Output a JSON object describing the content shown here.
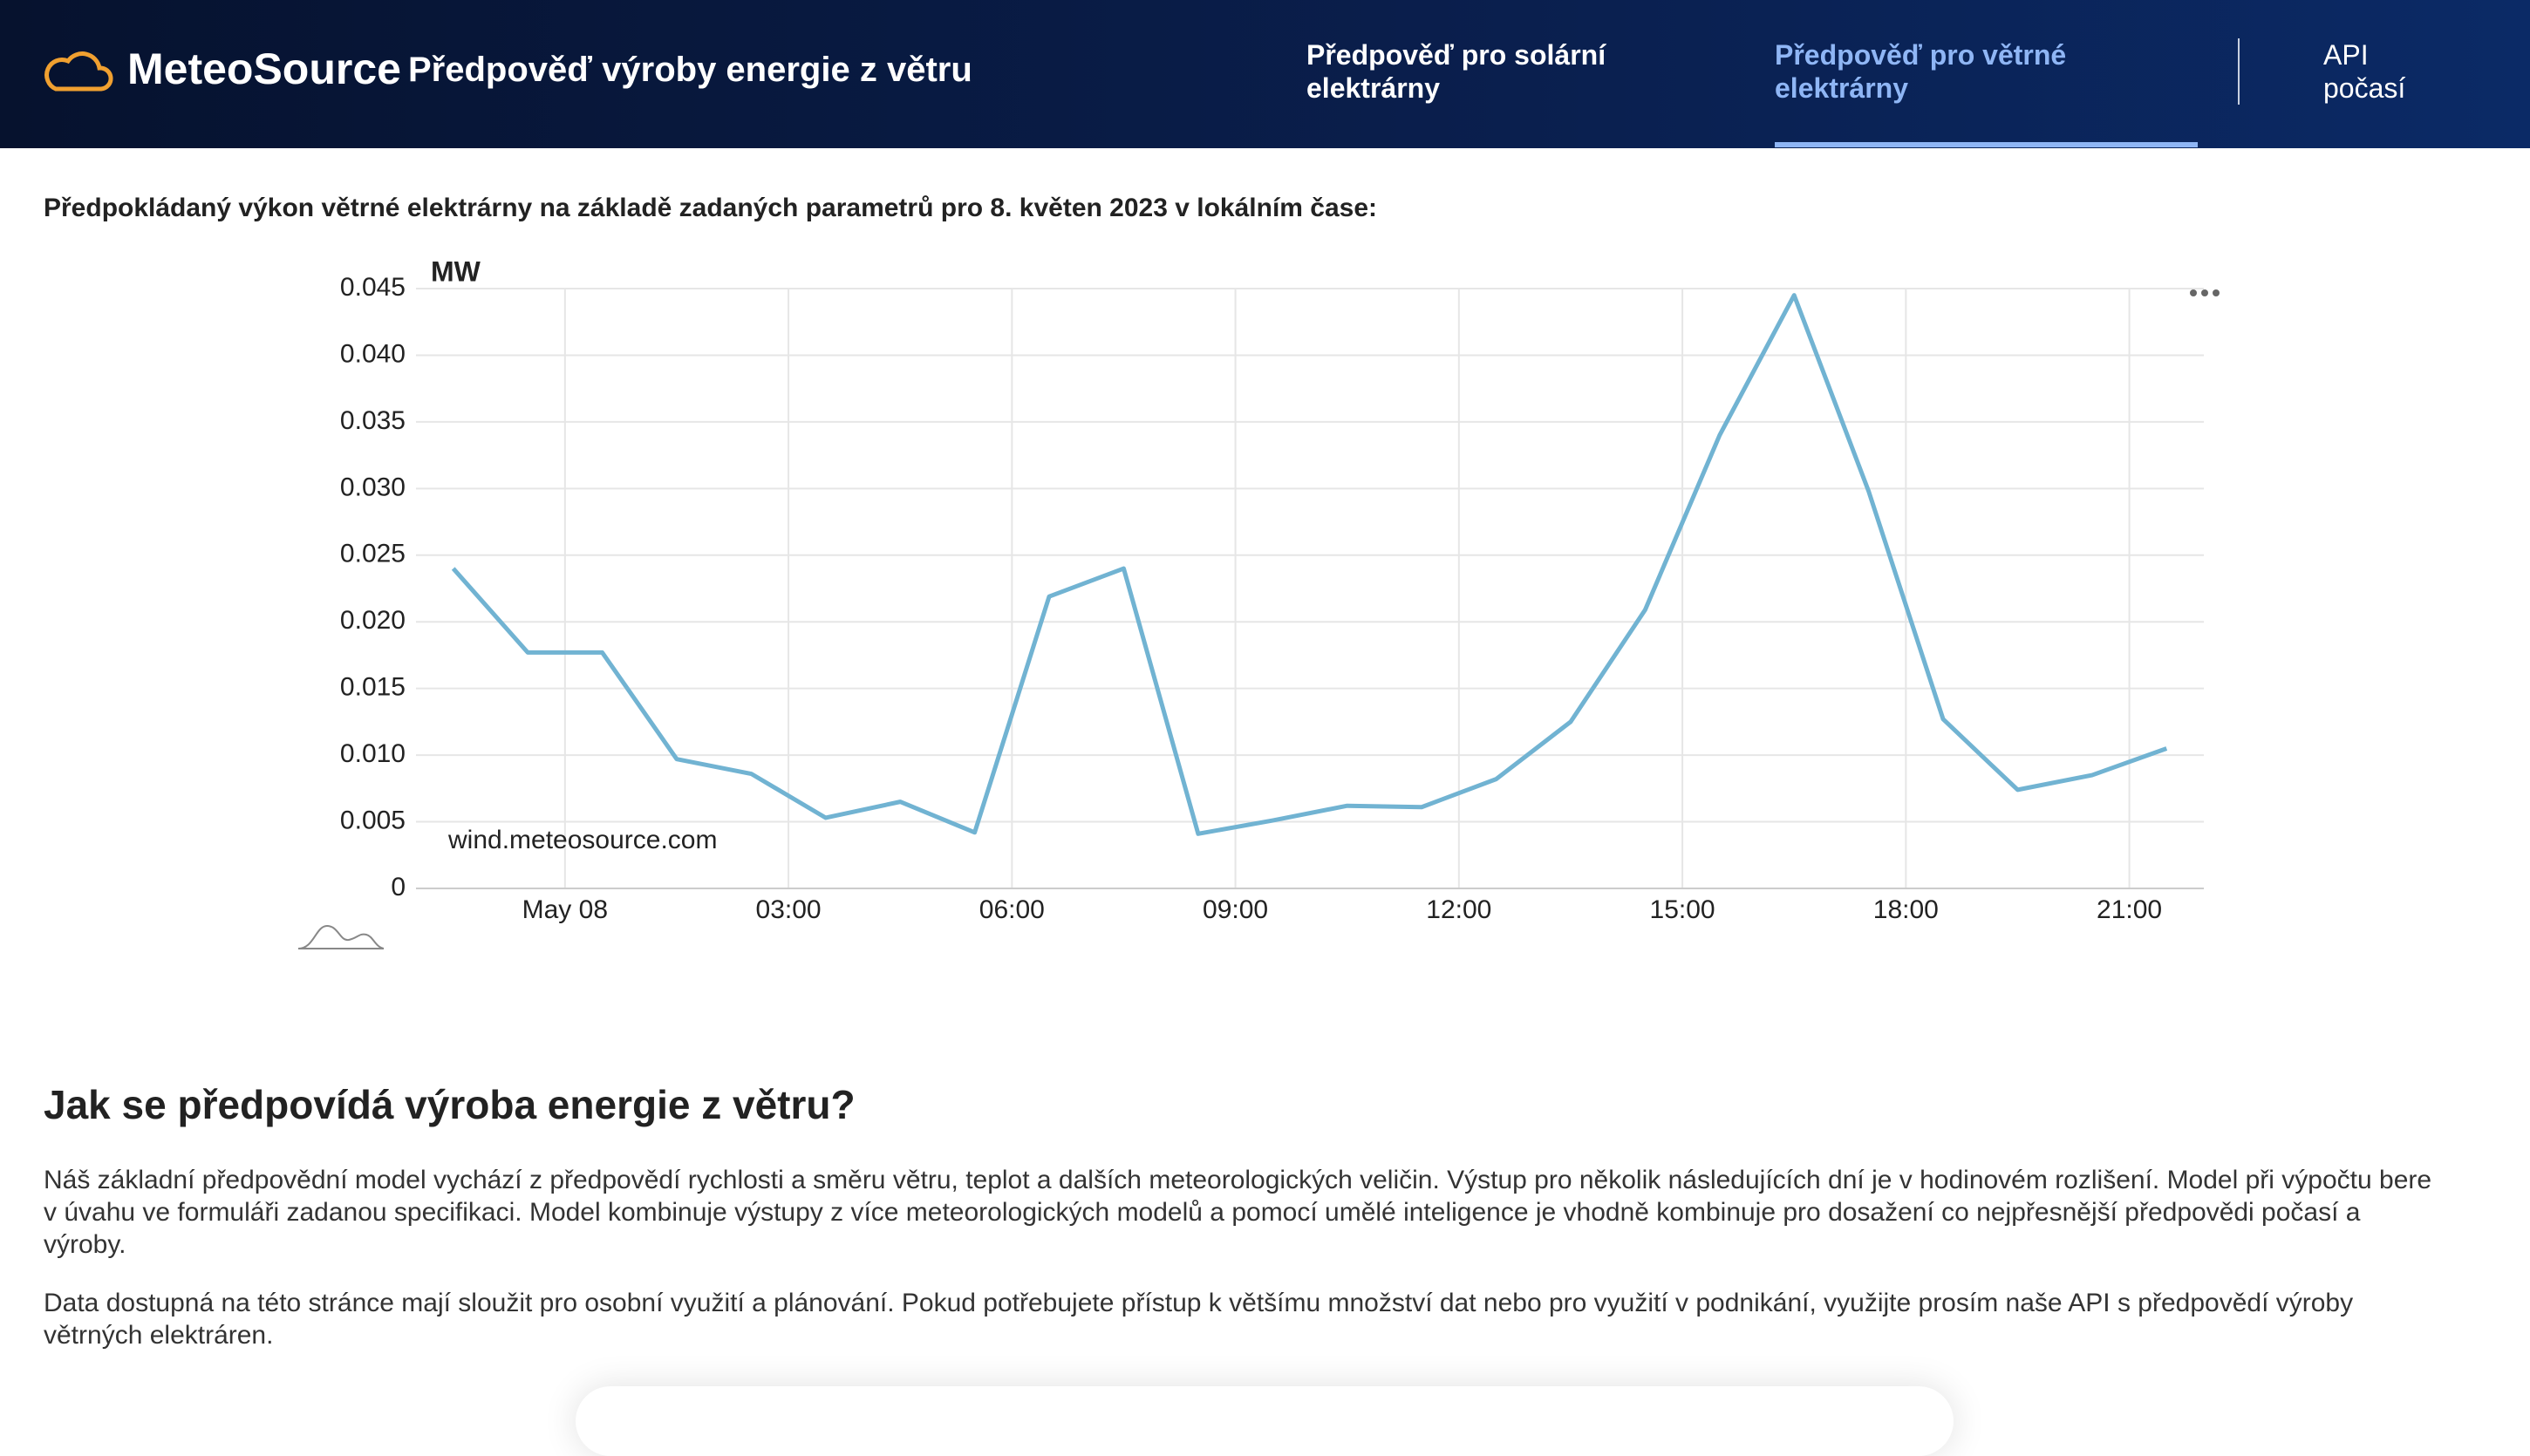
{
  "header": {
    "logo": "MeteoSource",
    "title": "Předpověď výroby energie z větru",
    "nav": [
      "Předpověď pro solární elektrárny",
      "Předpověď pro větrné elektrárny",
      "API počasí"
    ]
  },
  "intro": "Předpokládaný výkon větrné elektrárny na základě zadaných parametrů pro 8. květen 2023 v lokálním čase:",
  "chart_data": {
    "type": "line",
    "y_label": "MW",
    "watermark": "wind.meteosource.com",
    "color": "#71b3d2",
    "x": [
      -1.5,
      -0.5,
      0.5,
      1.5,
      2.5,
      3.5,
      4.5,
      5.5,
      6.5,
      7.5,
      8.5,
      9.5,
      10.5,
      11.5,
      12.5,
      13.5,
      14.5,
      15.5,
      16.5,
      17.5,
      18.5,
      19.5,
      20.5,
      21.5
    ],
    "series": [
      {
        "name": "MW",
        "color": "#71b3d2",
        "values": [
          0.024,
          0.0177,
          0.0177,
          0.0097,
          0.0086,
          0.0053,
          0.0065,
          0.0042,
          0.0219,
          0.024,
          0.0041,
          0.0051,
          0.0062,
          0.0061,
          0.0082,
          0.0125,
          0.0209,
          0.034,
          0.0445,
          0.0298,
          0.0127,
          0.0074,
          0.0085,
          0.0105
        ]
      }
    ],
    "xlim": [
      -2,
      22
    ],
    "xticks": [
      {
        "value": 0,
        "label": "May 08"
      },
      {
        "value": 3,
        "label": "03:00"
      },
      {
        "value": 6,
        "label": "06:00"
      },
      {
        "value": 9,
        "label": "09:00"
      },
      {
        "value": 12,
        "label": "12:00"
      },
      {
        "value": 15,
        "label": "15:00"
      },
      {
        "value": 18,
        "label": "18:00"
      },
      {
        "value": 21,
        "label": "21:00"
      }
    ],
    "ylim": [
      0,
      0.045
    ],
    "yticks": [
      0,
      0.005,
      {
        "value": 0.01,
        "label": "0.010"
      },
      0.015,
      {
        "value": 0.02,
        "label": "0.020"
      },
      0.025,
      {
        "value": 0.03,
        "label": "0.030"
      },
      0.035,
      {
        "value": 0.04,
        "label": "0.040"
      },
      0.045
    ],
    "grid": true
  },
  "section": {
    "heading": "Jak se předpovídá výroba energie z větru?",
    "paragraphs": [
      "Náš základní předpovědní model vychází z předpovědí rychlosti a směru větru, teplot a dalších meteorologických veličin. Výstup pro několik následujících dní je v hodinovém rozlišení. Model při výpočtu bere v úvahu ve formuláři zadanou specifikaci. Model kombinuje výstupy z více meteorologických modelů a pomocí umělé inteligence je vhodně kombinuje pro dosažení co nejpřesnější předpovědi počasí a výroby.",
      "Data dostupná na této stránce mají sloužit pro osobní využití a plánování. Pokud potřebujete přístup k většímu množství dat nebo pro využití v podnikání, využijte prosím naše API s předpovědí výroby větrných elektráren."
    ]
  }
}
